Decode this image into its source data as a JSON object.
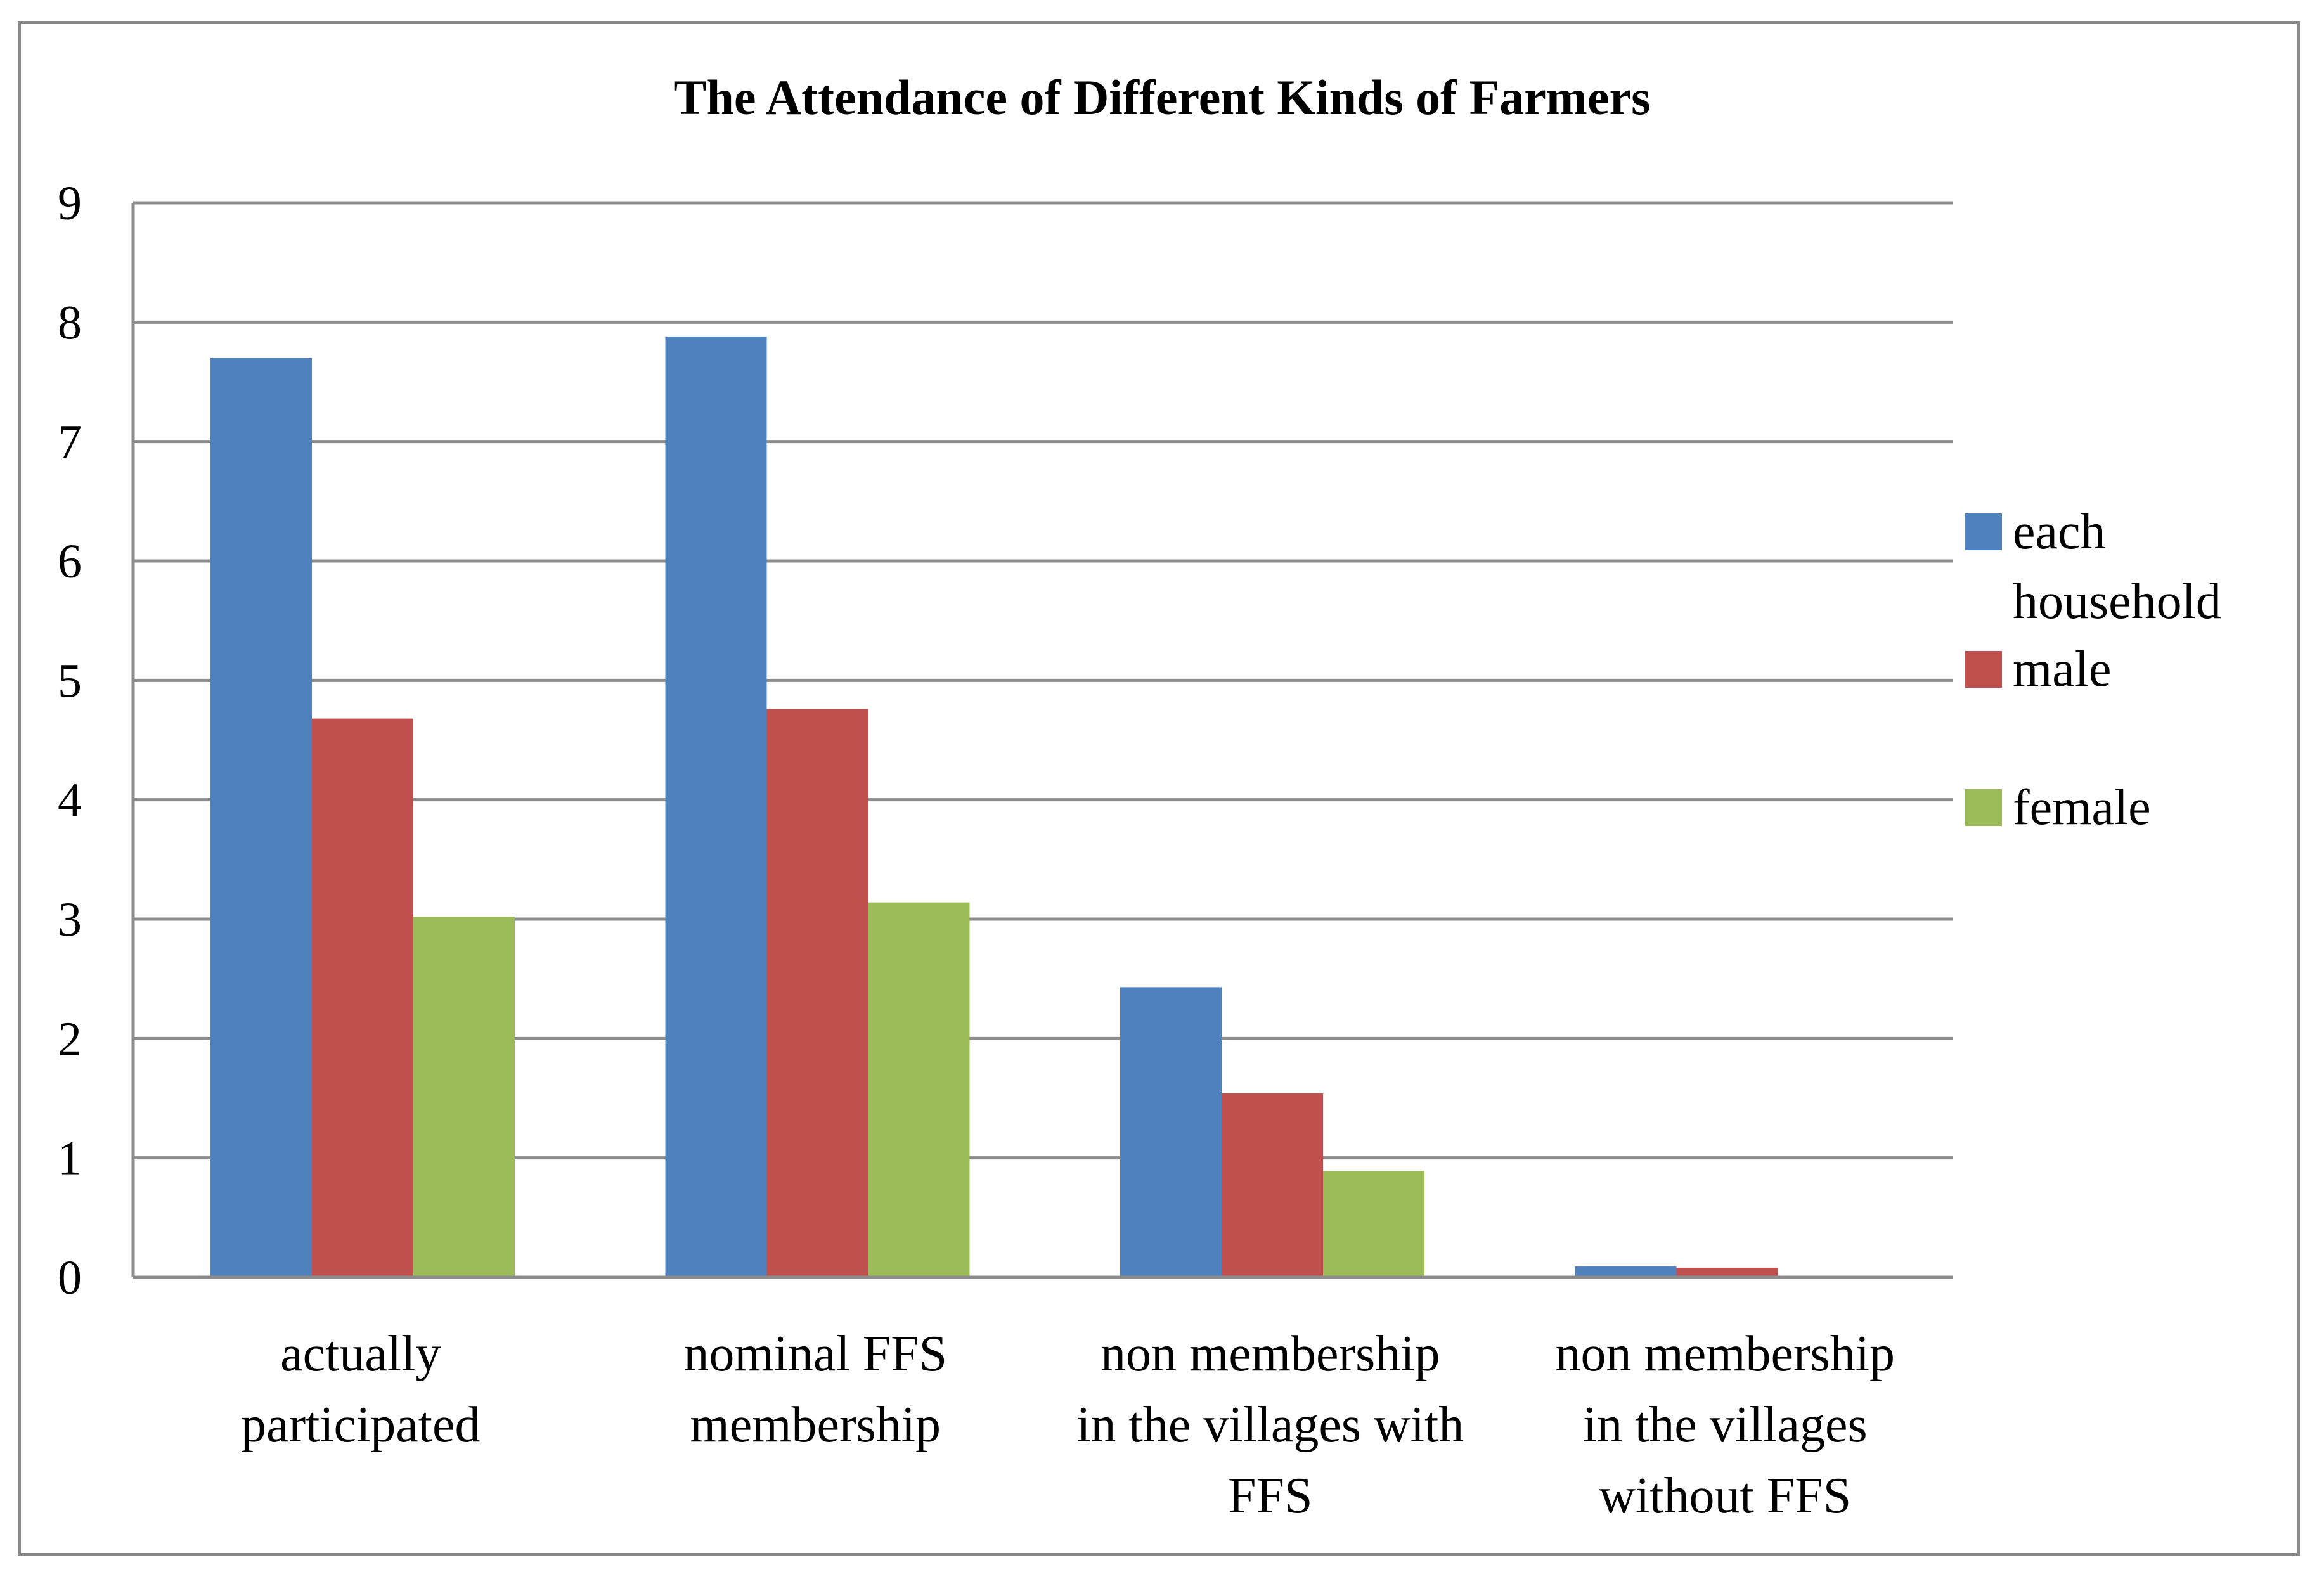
{
  "chart_data": {
    "type": "bar",
    "title": "The Attendance of Different Kinds of Farmers",
    "xlabel": "",
    "ylabel": "",
    "ylim": [
      0,
      9
    ],
    "yticks": [
      "0",
      "1",
      "2",
      "3",
      "4",
      "5",
      "6",
      "7",
      "8",
      "9"
    ],
    "grid": true,
    "legend_position": "right",
    "categories": [
      [
        "actually",
        "participated"
      ],
      [
        "nominal FFS",
        "membership"
      ],
      [
        "non membership",
        "in the villages with",
        "FFS"
      ],
      [
        "non membership",
        "in the villages",
        "without FFS"
      ]
    ],
    "series": [
      {
        "name": [
          "each",
          "household"
        ],
        "color": "#4f81bd",
        "values": [
          7.7,
          7.88,
          2.43,
          0.09
        ]
      },
      {
        "name": [
          "male"
        ],
        "color": "#c0504d",
        "values": [
          4.68,
          4.76,
          1.54,
          0.08
        ]
      },
      {
        "name": [
          "female"
        ],
        "color": "#9bbb59",
        "values": [
          3.02,
          3.14,
          0.89,
          0
        ]
      }
    ]
  }
}
